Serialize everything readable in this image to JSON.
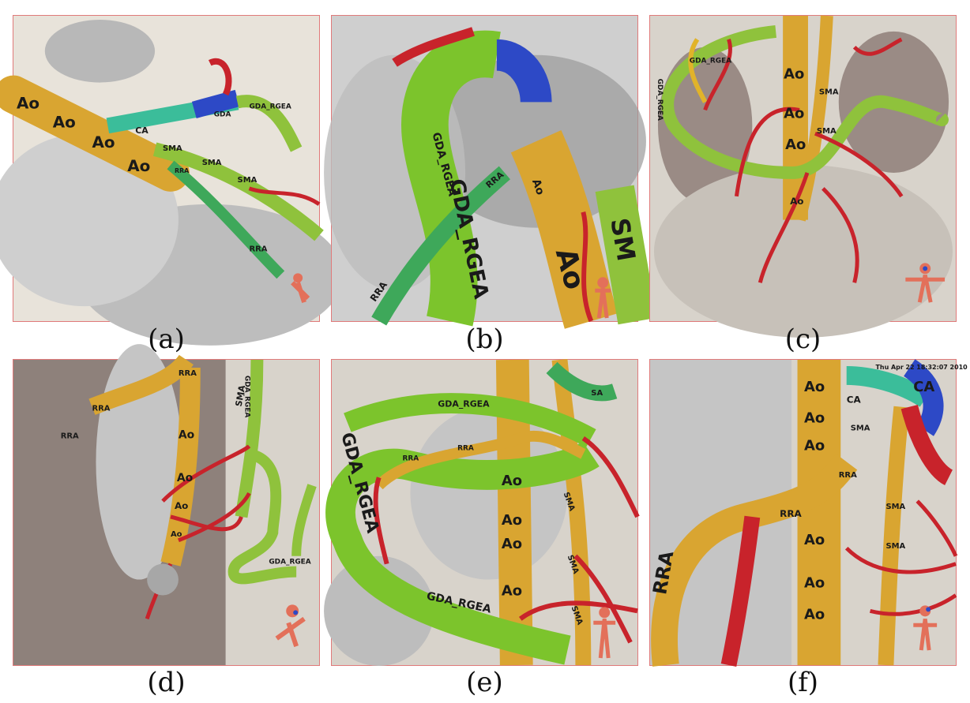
{
  "panels": [
    {
      "id": "a",
      "caption": "(a)",
      "labels": [
        "Ao",
        "Ao",
        "Ao",
        "Ao",
        "CA",
        "GDA",
        "GDA_RGEA",
        "SMA",
        "SMA",
        "SMA",
        "RRA",
        "RRA"
      ]
    },
    {
      "id": "b",
      "caption": "(b)",
      "labels": [
        "GDA_RGEA",
        "GDA_RGEA",
        "RRA",
        "RRA",
        "Ao",
        "Ao",
        "SM"
      ]
    },
    {
      "id": "c",
      "caption": "(c)",
      "labels": [
        "GDA_RGEA",
        "GDA_RGEA",
        "Ao",
        "Ao",
        "Ao",
        "Ao",
        "SMA",
        "SMA"
      ]
    },
    {
      "id": "d",
      "caption": "(d)",
      "labels": [
        "RRA",
        "RRA",
        "GDA_RGEA",
        "SMA",
        "Ao",
        "Ao",
        "Ao",
        "Ao",
        "GDA_RGEA",
        "RRA"
      ]
    },
    {
      "id": "e",
      "caption": "(e)",
      "labels": [
        "GDA_RGEA",
        "GDA_RGEA",
        "GDA_RGEA",
        "RRA",
        "RRA",
        "Ao",
        "Ao",
        "Ao",
        "Ao",
        "SMA",
        "SMA",
        "SMA",
        "SA"
      ]
    },
    {
      "id": "f",
      "caption": "(f)",
      "timestamp": "Thu Apr 22 18:32:07 2010",
      "labels": [
        "Ao",
        "Ao",
        "Ao",
        "Ao",
        "Ao",
        "Ao",
        "CA",
        "CA",
        "SMA",
        "SMA",
        "SMA",
        "RRA",
        "RRA",
        "RRA"
      ]
    }
  ],
  "colors": {
    "aorta": "#d9a531",
    "sma": "#8fc23c",
    "gda": "#7cc42c",
    "rra": "#3ea85a",
    "ca": "#3bbd9a",
    "gda_blue": "#2d49c6",
    "vessel_red": "#c8232b",
    "bone": "#c9c9c9",
    "background": "#e6e1d8",
    "tissue": "#8b7f79",
    "border": "#e07a7a"
  }
}
